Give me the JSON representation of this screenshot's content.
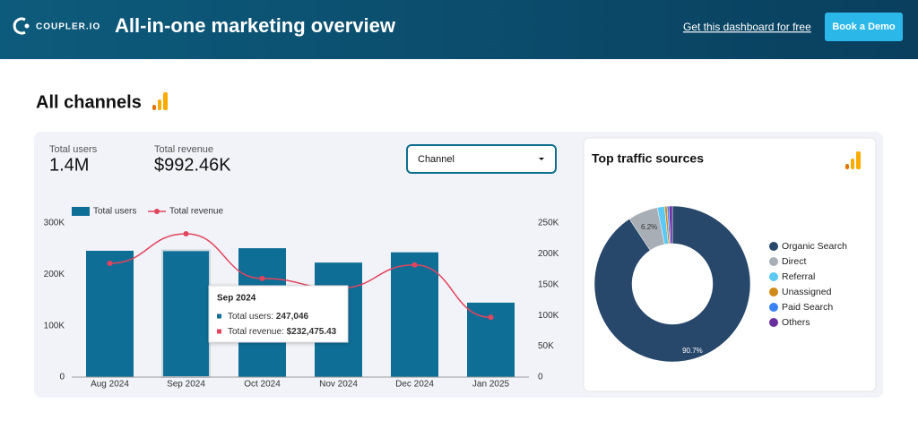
{
  "header": {
    "logo": "COUPLER.IO",
    "title": "All-in-one marketing overview",
    "link": "Get this dashboard for free",
    "button": "Book a Demo"
  },
  "section": {
    "title": "All channels"
  },
  "kpis": [
    {
      "label": "Total users",
      "value": "1.4M"
    },
    {
      "label": "Total revenue",
      "value": "$992.46K"
    }
  ],
  "dropdown": {
    "label": "Channel"
  },
  "tooltip": {
    "title": "Sep 2024",
    "rows": [
      {
        "label": "Total users: ",
        "value": "247,046"
      },
      {
        "label": "Total revenue: ",
        "value": "$232,475.43"
      }
    ]
  },
  "chart_data": [
    {
      "type": "bar",
      "categories": [
        "Aug 2024",
        "Sep 2024",
        "Oct 2024",
        "Nov 2024",
        "Dec 2024",
        "Jan 2025"
      ],
      "series": [
        {
          "name": "Total users",
          "type": "bar",
          "color": "#0f6e96",
          "values": [
            246000,
            247046,
            251000,
            223000,
            243000,
            145000
          ]
        },
        {
          "name": "Total revenue",
          "type": "line",
          "axis": "y2",
          "color": "#e2445f",
          "values": [
            184600,
            232475.43,
            160000,
            144000,
            182000,
            97000
          ]
        }
      ],
      "ylim": [
        0,
        300000
      ],
      "yticks": [
        0,
        {
          "value": 100000,
          "label": "100K"
        },
        {
          "value": 200000,
          "label": "200K"
        },
        {
          "value": 300000,
          "label": "300K"
        }
      ],
      "y2lim": [
        0,
        250000
      ],
      "y2ticks": [
        0,
        {
          "value": 50000,
          "label": "50K"
        },
        {
          "value": 100000,
          "label": "100K"
        },
        {
          "value": 150000,
          "label": "150K"
        },
        {
          "value": 200000,
          "label": "200K"
        },
        {
          "value": 250000,
          "label": "250K"
        }
      ],
      "grid": false,
      "legend": "top-left"
    },
    {
      "type": "pie",
      "title": "Top traffic sources",
      "donut": true,
      "categories": [
        "Organic Search",
        "Direct",
        "Referral",
        "Unassigned",
        "Paid Search",
        "Others"
      ],
      "values": [
        90.7,
        6.2,
        1.5,
        0.5,
        0.4,
        0.7
      ],
      "value_labels": [
        "90.7%",
        "6.2%",
        null,
        null,
        null,
        null
      ],
      "colors": [
        "#27476b",
        "#a8aeb6",
        "#5bc8f5",
        "#d08a1a",
        "#3b82f6",
        "#6b2fa0"
      ],
      "legend": "right"
    }
  ]
}
